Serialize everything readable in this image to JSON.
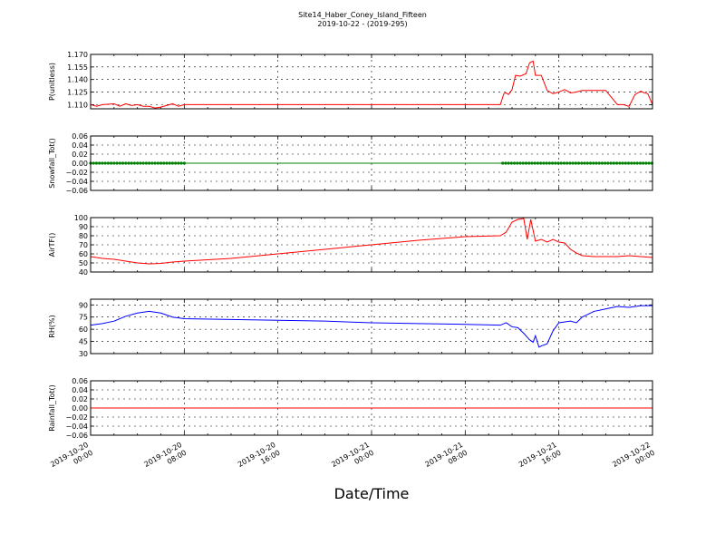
{
  "figure": {
    "title": "Site14_Haber_Coney_Island_Fifteen",
    "subtitle": "2019-10-22 - (2019-295)",
    "xlabel": "Date/Time"
  },
  "chart_data": [
    {
      "type": "line",
      "ylabel": "P(unitless)",
      "ylim": [
        1.105,
        1.17
      ],
      "yticks": [
        "1.110",
        "1.125",
        "1.140",
        "1.155",
        "1.170"
      ],
      "ytick_values": [
        1.11,
        1.125,
        1.14,
        1.155,
        1.17
      ],
      "color": "#ff0000",
      "grid": true,
      "x": [
        0,
        0.5,
        1,
        2,
        2.5,
        3,
        3.5,
        4,
        4.5,
        5,
        5.5,
        6,
        7,
        7.5,
        8,
        8.5,
        9,
        10,
        12,
        16,
        20,
        24,
        28,
        31,
        32,
        33.5,
        35,
        35.3,
        35.5,
        35.7,
        36,
        36.3,
        36.7,
        37.2,
        37.5,
        37.8,
        38,
        38.5,
        39,
        39.5,
        40,
        40.5,
        41,
        41.5,
        42,
        42.5,
        43,
        44,
        45,
        45.5,
        46,
        46.5,
        47,
        47.3,
        47.6,
        48
      ],
      "y": [
        1.11,
        1.108,
        1.11,
        1.111,
        1.108,
        1.111,
        1.109,
        1.11,
        1.108,
        1.108,
        1.106,
        1.107,
        1.111,
        1.108,
        1.11,
        1.11,
        1.11,
        1.11,
        1.11,
        1.11,
        1.11,
        1.11,
        1.11,
        1.11,
        1.11,
        1.11,
        1.11,
        1.123,
        1.124,
        1.122,
        1.128,
        1.145,
        1.144,
        1.147,
        1.16,
        1.162,
        1.145,
        1.145,
        1.127,
        1.123,
        1.125,
        1.128,
        1.124,
        1.125,
        1.127,
        1.127,
        1.127,
        1.127,
        1.11,
        1.11,
        1.108,
        1.122,
        1.126,
        1.124,
        1.123,
        1.11
      ]
    },
    {
      "type": "line",
      "ylabel": "Snowfall_Tot()",
      "ylim": [
        -0.06,
        0.06
      ],
      "yticks": [
        "0.06",
        "0.04",
        "0.02",
        "0.00",
        "−0.02",
        "−0.04",
        "−0.06"
      ],
      "ytick_values": [
        0.06,
        0.04,
        0.02,
        0.0,
        -0.02,
        -0.04,
        -0.06
      ],
      "color": "#008000",
      "marker_ranges": [
        [
          0,
          8
        ],
        [
          35.2,
          48
        ]
      ],
      "grid": true,
      "x": [
        0,
        48
      ],
      "y": [
        0,
        0
      ]
    },
    {
      "type": "line",
      "ylabel": "AirTF()",
      "ylim": [
        40,
        100
      ],
      "yticks": [
        "100",
        "90",
        "80",
        "70",
        "60",
        "50",
        "40"
      ],
      "ytick_values": [
        100,
        90,
        80,
        70,
        60,
        50,
        40
      ],
      "color": "#ff0000",
      "grid": true,
      "x": [
        0,
        1,
        2,
        3,
        4,
        5,
        6,
        7,
        8,
        12,
        16,
        20,
        24,
        28,
        32,
        35,
        35.5,
        36,
        36.5,
        37,
        37.3,
        37.6,
        38,
        38.5,
        39,
        39.5,
        40,
        40.5,
        41,
        41.5,
        42,
        43,
        44,
        45,
        46,
        47,
        48
      ],
      "y": [
        57,
        55,
        54,
        52,
        50,
        49,
        49.5,
        51,
        52,
        55,
        60,
        65,
        70,
        75,
        79,
        80,
        84,
        95,
        98,
        99,
        76,
        98,
        74,
        76,
        73,
        76,
        73,
        72,
        65,
        61,
        58,
        57,
        57,
        57,
        58,
        57,
        56
      ]
    },
    {
      "type": "line",
      "ylabel": "RH(%)",
      "ylim": [
        30,
        97
      ],
      "yticks": [
        "90",
        "75",
        "60",
        "45",
        "30"
      ],
      "ytick_values": [
        90,
        75,
        60,
        45,
        30
      ],
      "color": "#0000ff",
      "grid": true,
      "x": [
        0,
        1,
        2,
        3,
        4,
        5,
        6,
        7,
        7.5,
        8,
        12,
        16,
        20,
        24,
        28,
        32,
        35,
        35.5,
        36,
        36.5,
        37,
        37.5,
        37.8,
        38,
        38.3,
        38.6,
        39,
        39.5,
        40,
        41,
        41.5,
        42,
        43,
        44,
        45,
        46,
        47,
        48
      ],
      "y": [
        65,
        67,
        70,
        76,
        80,
        82,
        80,
        75,
        74,
        73,
        72,
        71,
        70,
        68,
        67,
        66,
        65,
        68,
        63,
        62,
        55,
        47,
        44,
        52,
        38,
        40,
        42,
        58,
        68,
        70,
        68,
        75,
        82,
        85,
        88,
        87,
        89,
        89
      ]
    },
    {
      "type": "line",
      "ylabel": "Rainfall_Tot()",
      "ylim": [
        -0.06,
        0.06
      ],
      "yticks": [
        "0.06",
        "0.04",
        "0.02",
        "0.00",
        "−0.02",
        "−0.04",
        "−0.06"
      ],
      "ytick_values": [
        0.06,
        0.04,
        0.02,
        0.0,
        -0.02,
        -0.04,
        -0.06
      ],
      "color": "#ff0000",
      "grid": true,
      "x": [
        0,
        48
      ],
      "y": [
        0,
        0
      ]
    }
  ],
  "xaxis": {
    "range": [
      0,
      48
    ],
    "tick_values": [
      0,
      8,
      16,
      24,
      32,
      40,
      48
    ],
    "tick_labels": [
      [
        "2019-10-20",
        "00:00"
      ],
      [
        "2019-10-20",
        "08:00"
      ],
      [
        "2019-10-20",
        "16:00"
      ],
      [
        "2019-10-21",
        "00:00"
      ],
      [
        "2019-10-21",
        "08:00"
      ],
      [
        "2019-10-21",
        "16:00"
      ],
      [
        "2019-10-22",
        "00:00"
      ]
    ]
  }
}
